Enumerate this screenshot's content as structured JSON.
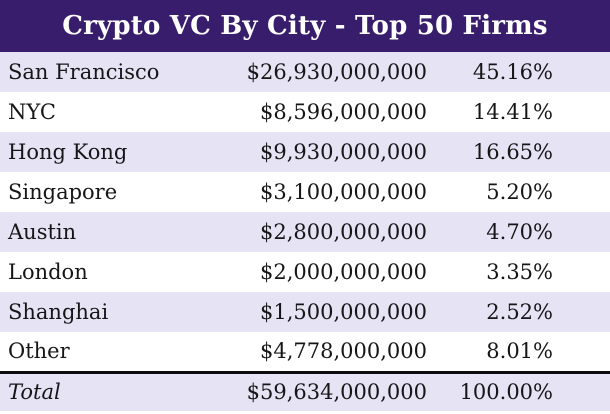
{
  "title": "Crypto VC By City - Top 50 Firms",
  "colors": {
    "header_bg": "#391d6d",
    "header_text": "#ffffff",
    "row_alt_bg": "#e6e3f5",
    "row_bg": "#ffffff",
    "text": "#161616",
    "total_divider": "#0c0c0c"
  },
  "table": {
    "rows": [
      {
        "city": "San Francisco",
        "amount": "$26,930,000,000",
        "percent": "45.16%"
      },
      {
        "city": "NYC",
        "amount": "$8,596,000,000",
        "percent": "14.41%"
      },
      {
        "city": "Hong Kong",
        "amount": "$9,930,000,000",
        "percent": "16.65%"
      },
      {
        "city": "Singapore",
        "amount": "$3,100,000,000",
        "percent": "5.20%"
      },
      {
        "city": "Austin",
        "amount": "$2,800,000,000",
        "percent": "4.70%"
      },
      {
        "city": "London",
        "amount": "$2,000,000,000",
        "percent": "3.35%"
      },
      {
        "city": "Shanghai",
        "amount": "$1,500,000,000",
        "percent": "2.52%"
      },
      {
        "city": "Other",
        "amount": "$4,778,000,000",
        "percent": "8.01%"
      }
    ],
    "total": {
      "label": "Total",
      "amount": "$59,634,000,000",
      "percent": "100.00%"
    }
  },
  "chart_data": {
    "type": "table",
    "title": "Crypto VC By City - Top 50 Firms",
    "categories": [
      "San Francisco",
      "NYC",
      "Hong Kong",
      "Singapore",
      "Austin",
      "London",
      "Shanghai",
      "Other"
    ],
    "values_usd": [
      26930000000,
      8596000000,
      9930000000,
      3100000000,
      2800000000,
      2000000000,
      1500000000,
      4778000000
    ],
    "percentages": [
      45.16,
      14.41,
      16.65,
      5.2,
      4.7,
      3.35,
      2.52,
      8.01
    ],
    "total_usd": 59634000000,
    "total_percentage": 100.0
  }
}
